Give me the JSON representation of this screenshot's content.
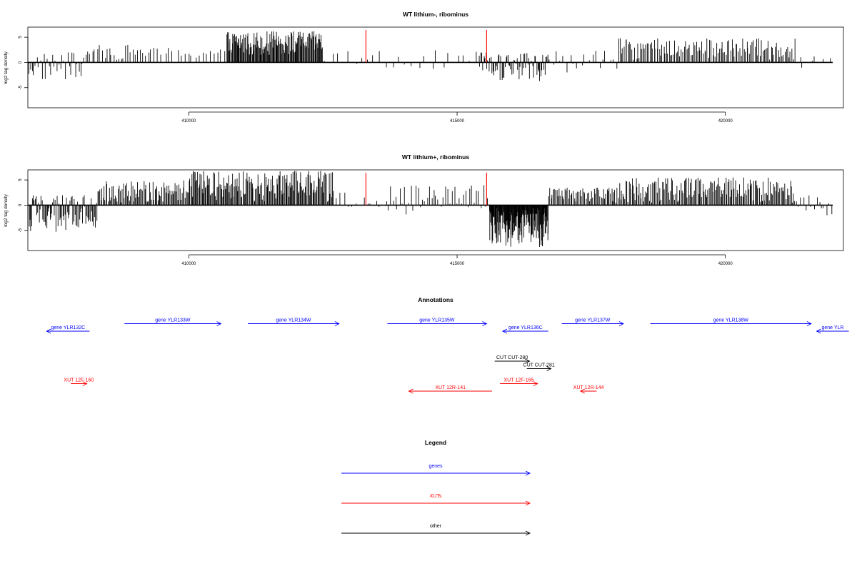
{
  "chart_data": [
    {
      "type": "bar",
      "title": "WT lithium-, ribominus",
      "ylabel": "log2 tag density",
      "xlim": [
        407000,
        422200
      ],
      "ylim": [
        -9,
        7
      ],
      "xticks": [
        410000,
        415000,
        420000
      ],
      "yticks": [
        -5,
        0,
        5
      ],
      "baseline": [
        407000,
        422000
      ],
      "highlight_positions": [
        413300,
        415550
      ],
      "highlight_color": "#ff0000",
      "segments": [
        {
          "from": 407000,
          "to": 408100,
          "min": -4.0,
          "max": 2.0,
          "n": 35
        },
        {
          "from": 408100,
          "to": 409200,
          "min": 0.5,
          "max": 3.5,
          "n": 25
        },
        {
          "from": 409200,
          "to": 410700,
          "min": 0.5,
          "max": 3.0,
          "n": 22
        },
        {
          "from": 410700,
          "to": 412500,
          "min": 1.5,
          "max": 6.2,
          "n": 140
        },
        {
          "from": 412500,
          "to": 413300,
          "min": -1.5,
          "max": 2.5,
          "n": 6
        },
        {
          "from": 413300,
          "to": 415400,
          "min": -2.0,
          "max": 2.5,
          "n": 18
        },
        {
          "from": 415400,
          "to": 416700,
          "min": -4.0,
          "max": 2.0,
          "n": 70
        },
        {
          "from": 416700,
          "to": 418000,
          "min": -2.0,
          "max": 2.5,
          "n": 20
        },
        {
          "from": 418000,
          "to": 421300,
          "min": 0.5,
          "max": 4.8,
          "n": 130
        },
        {
          "from": 421300,
          "to": 422000,
          "min": -1.5,
          "max": 2.0,
          "n": 6
        }
      ]
    },
    {
      "type": "bar",
      "title": "WT lithium+, ribominus",
      "ylabel": "log2 tag density",
      "xlim": [
        407000,
        422200
      ],
      "ylim": [
        -9,
        7
      ],
      "xticks": [
        410000,
        415000,
        420000
      ],
      "yticks": [
        -5,
        0,
        5
      ],
      "baseline": [
        407000,
        422000
      ],
      "highlight_positions": [
        413300,
        415550
      ],
      "highlight_color": "#ff0000",
      "segments": [
        {
          "from": 407000,
          "to": 408300,
          "min": -5.5,
          "max": 2.0,
          "n": 80
        },
        {
          "from": 408300,
          "to": 410000,
          "min": 0.5,
          "max": 5.0,
          "n": 90
        },
        {
          "from": 410000,
          "to": 412700,
          "min": 0.5,
          "max": 6.8,
          "n": 170
        },
        {
          "from": 412700,
          "to": 413700,
          "min": -2.0,
          "max": 2.5,
          "n": 12
        },
        {
          "from": 413700,
          "to": 415600,
          "min": -2.0,
          "max": 4.0,
          "n": 45
        },
        {
          "from": 415600,
          "to": 416700,
          "min": -8.5,
          "max": -0.5,
          "n": 150
        },
        {
          "from": 416700,
          "to": 418000,
          "min": 0.5,
          "max": 3.5,
          "n": 60
        },
        {
          "from": 418000,
          "to": 421300,
          "min": 0.5,
          "max": 5.5,
          "n": 170
        },
        {
          "from": 421300,
          "to": 422000,
          "min": -2.0,
          "max": 2.0,
          "n": 15
        }
      ]
    }
  ],
  "annotations": {
    "title": "Annotations",
    "features": [
      {
        "label": "gene YLR132C",
        "start": 408150,
        "end": 407350,
        "row": 2,
        "category": "genes"
      },
      {
        "label": "gene YLR133W",
        "start": 408800,
        "end": 410600,
        "row": 1,
        "category": "genes"
      },
      {
        "label": "gene YLR134W",
        "start": 411100,
        "end": 412800,
        "row": 1,
        "category": "genes"
      },
      {
        "label": "gene YLR135W",
        "start": 413700,
        "end": 415550,
        "row": 1,
        "category": "genes"
      },
      {
        "label": "gene YLR136C",
        "start": 416700,
        "end": 415850,
        "row": 2,
        "category": "genes"
      },
      {
        "label": "gene YLR137W",
        "start": 416950,
        "end": 418100,
        "row": 1,
        "category": "genes"
      },
      {
        "label": "gene YLR138W",
        "start": 418600,
        "end": 421600,
        "row": 1,
        "category": "genes"
      },
      {
        "label": "gene YLR",
        "start": 422300,
        "end": 421700,
        "row": 2,
        "category": "genes"
      },
      {
        "label": "CUT CUT-280",
        "start": 415700,
        "end": 416350,
        "row": 6,
        "category": "other"
      },
      {
        "label": "CUT CUT-281",
        "start": 416300,
        "end": 416750,
        "row": 7,
        "category": "other"
      },
      {
        "label": "XUT 12F-160",
        "start": 407800,
        "end": 408100,
        "row": 9,
        "category": "XUTs"
      },
      {
        "label": "XUT 12F-165",
        "start": 415800,
        "end": 416500,
        "row": 9,
        "category": "XUTs"
      },
      {
        "label": "XUT 12R-141",
        "start": 415650,
        "end": 414100,
        "row": 10,
        "category": "XUTs"
      },
      {
        "label": "XUT 12R-144",
        "start": 417600,
        "end": 417300,
        "row": 10,
        "category": "XUTs"
      }
    ]
  },
  "legend": {
    "title": "Legend",
    "items": [
      {
        "label": "genes",
        "color": "#0000ff"
      },
      {
        "label": "XUTs",
        "color": "#ff0000"
      },
      {
        "label": "other",
        "color": "#000000"
      }
    ]
  },
  "colors": {
    "genes": "#0000ff",
    "XUTs": "#ff0000",
    "other": "#000000",
    "axis": "#000000"
  }
}
